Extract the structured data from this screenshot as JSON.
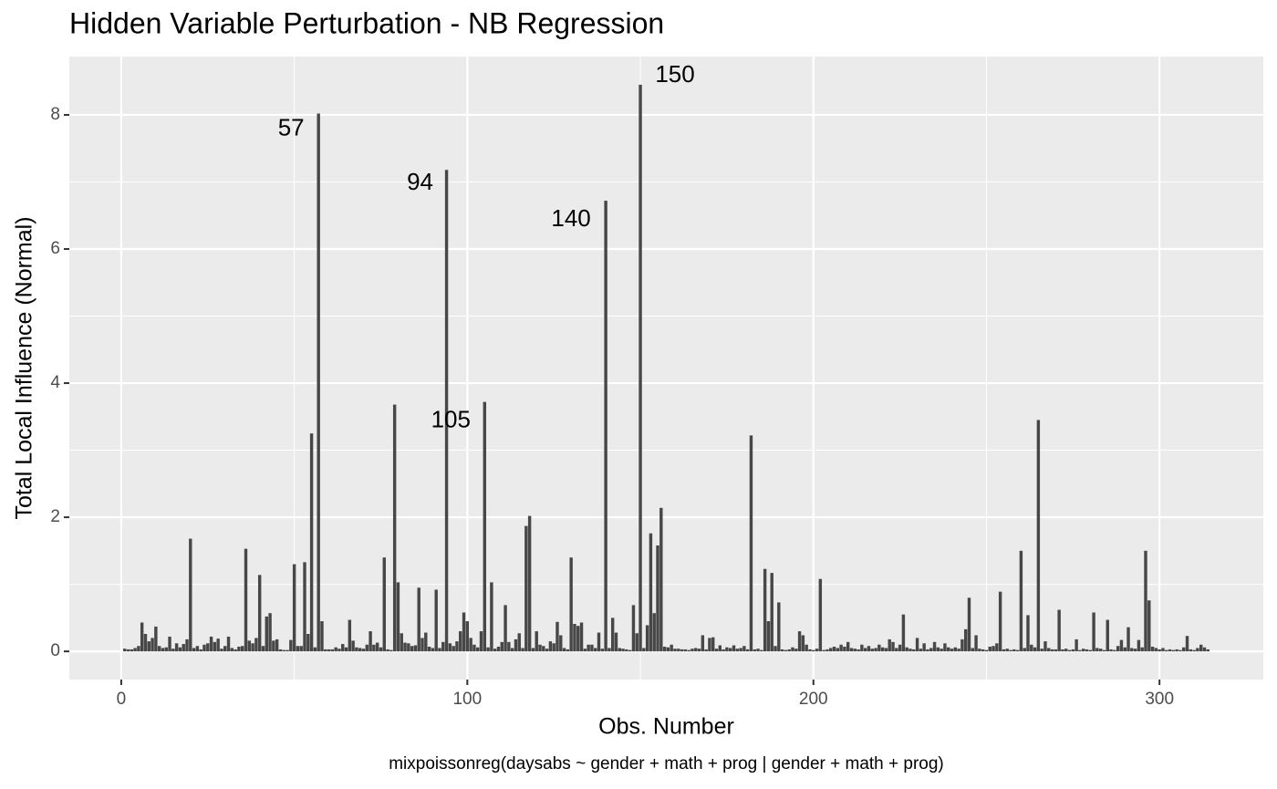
{
  "chart_data": {
    "type": "bar",
    "title": "Hidden Variable Perturbation - NB Regression",
    "x_label": "Obs. Number",
    "y_label": "Total Local Influence (Normal)",
    "caption": "mixpoissonreg(daysabs ~ gender + math + prog | gender + math + prog)",
    "color": "#474747",
    "grid": true,
    "xlim": [
      -15,
      330
    ],
    "ylim": [
      -0.42,
      8.87
    ],
    "xticks": [
      0,
      100,
      200,
      300
    ],
    "yticks": [
      0,
      2,
      4,
      6,
      8
    ],
    "x_minor_grid": [
      50,
      150,
      250
    ],
    "y_minor_grid": [
      1,
      3,
      5,
      7
    ],
    "annotations": [
      {
        "label": "57",
        "x": 57
      },
      {
        "label": "94",
        "x": 94
      },
      {
        "label": "105",
        "x": 105
      },
      {
        "label": "140",
        "x": 140
      },
      {
        "label": "150",
        "x": 150
      }
    ],
    "x": [
      1,
      2,
      3,
      4,
      5,
      6,
      7,
      8,
      9,
      10,
      11,
      12,
      13,
      14,
      15,
      16,
      17,
      18,
      19,
      20,
      21,
      22,
      23,
      24,
      25,
      26,
      27,
      28,
      29,
      30,
      31,
      32,
      33,
      34,
      35,
      36,
      37,
      38,
      39,
      40,
      41,
      42,
      43,
      44,
      45,
      46,
      47,
      48,
      49,
      50,
      51,
      52,
      53,
      54,
      55,
      56,
      57,
      58,
      59,
      60,
      61,
      62,
      63,
      64,
      65,
      66,
      67,
      68,
      69,
      70,
      71,
      72,
      73,
      74,
      75,
      76,
      77,
      78,
      79,
      80,
      81,
      82,
      83,
      84,
      85,
      86,
      87,
      88,
      89,
      90,
      91,
      92,
      93,
      94,
      95,
      96,
      97,
      98,
      99,
      100,
      101,
      102,
      103,
      104,
      105,
      106,
      107,
      108,
      109,
      110,
      111,
      112,
      113,
      114,
      115,
      116,
      117,
      118,
      119,
      120,
      121,
      122,
      123,
      124,
      125,
      126,
      127,
      128,
      129,
      130,
      131,
      132,
      133,
      134,
      135,
      136,
      137,
      138,
      139,
      140,
      141,
      142,
      143,
      144,
      145,
      146,
      147,
      148,
      149,
      150,
      151,
      152,
      153,
      154,
      155,
      156,
      157,
      158,
      159,
      160,
      161,
      162,
      163,
      164,
      165,
      166,
      167,
      168,
      169,
      170,
      171,
      172,
      173,
      174,
      175,
      176,
      177,
      178,
      179,
      180,
      181,
      182,
      183,
      184,
      185,
      186,
      187,
      188,
      189,
      190,
      191,
      192,
      193,
      194,
      195,
      196,
      197,
      198,
      199,
      200,
      201,
      202,
      203,
      204,
      205,
      206,
      207,
      208,
      209,
      210,
      211,
      212,
      213,
      214,
      215,
      216,
      217,
      218,
      219,
      220,
      221,
      222,
      223,
      224,
      225,
      226,
      227,
      228,
      229,
      230,
      231,
      232,
      233,
      234,
      235,
      236,
      237,
      238,
      239,
      240,
      241,
      242,
      243,
      244,
      245,
      246,
      247,
      248,
      249,
      250,
      251,
      252,
      253,
      254,
      255,
      256,
      257,
      258,
      259,
      260,
      261,
      262,
      263,
      264,
      265,
      266,
      267,
      268,
      269,
      270,
      271,
      272,
      273,
      274,
      275,
      276,
      277,
      278,
      279,
      280,
      281,
      282,
      283,
      284,
      285,
      286,
      287,
      288,
      289,
      290,
      291,
      292,
      293,
      294,
      295,
      296,
      297,
      298,
      299,
      300,
      301,
      302,
      303,
      304,
      305,
      306,
      307,
      308,
      309,
      310,
      311,
      312,
      313,
      314
    ],
    "values": [
      0.04,
      0.03,
      0.03,
      0.05,
      0.08,
      0.43,
      0.26,
      0.15,
      0.2,
      0.37,
      0.08,
      0.05,
      0.06,
      0.22,
      0.04,
      0.12,
      0.06,
      0.11,
      0.18,
      1.68,
      0.05,
      0.08,
      0.03,
      0.1,
      0.12,
      0.22,
      0.14,
      0.19,
      0.04,
      0.08,
      0.22,
      0.05,
      0.03,
      0.07,
      0.08,
      1.53,
      0.16,
      0.12,
      0.2,
      1.14,
      0.08,
      0.52,
      0.57,
      0.16,
      0.18,
      0.03,
      0.02,
      0.02,
      0.17,
      1.3,
      0.08,
      0.08,
      1.33,
      0.26,
      3.25,
      0.06,
      8.02,
      0.45,
      0.03,
      0.03,
      0.03,
      0.06,
      0.04,
      0.11,
      0.06,
      0.47,
      0.16,
      0.06,
      0.05,
      0.04,
      0.1,
      0.3,
      0.1,
      0.13,
      0.06,
      1.4,
      0.03,
      0.02,
      3.68,
      1.03,
      0.27,
      0.13,
      0.12,
      0.08,
      0.09,
      0.95,
      0.2,
      0.28,
      0.07,
      0.05,
      0.92,
      0.05,
      0.14,
      7.18,
      0.12,
      0.08,
      0.15,
      0.3,
      0.58,
      0.45,
      0.2,
      0.1,
      0.06,
      0.3,
      3.72,
      0.06,
      1.03,
      0.04,
      0.07,
      0.14,
      0.69,
      0.14,
      0.05,
      0.18,
      0.27,
      0.05,
      1.87,
      2.02,
      0.05,
      0.3,
      0.1,
      0.08,
      0.04,
      0.15,
      0.12,
      0.44,
      0.24,
      0.05,
      0.03,
      1.4,
      0.41,
      0.38,
      0.43,
      0.04,
      0.1,
      0.1,
      0.05,
      0.28,
      0.04,
      6.72,
      0.05,
      0.5,
      0.28,
      0.05,
      0.04,
      0.03,
      0.02,
      0.69,
      0.27,
      8.45,
      0.05,
      0.39,
      1.76,
      0.57,
      1.58,
      2.14,
      0.07,
      0.06,
      0.1,
      0.04,
      0.04,
      0.03,
      0.03,
      0.02,
      0.04,
      0.05,
      0.04,
      0.24,
      0.03,
      0.2,
      0.21,
      0.04,
      0.09,
      0.03,
      0.06,
      0.05,
      0.09,
      0.04,
      0.05,
      0.08,
      0.03,
      3.22,
      0.03,
      0.04,
      0.02,
      1.23,
      0.45,
      1.17,
      0.08,
      0.73,
      0.03,
      0.02,
      0.03,
      0.06,
      0.04,
      0.3,
      0.24,
      0.1,
      0.03,
      0.02,
      0.04,
      1.08,
      0.02,
      0.03,
      0.05,
      0.07,
      0.05,
      0.1,
      0.07,
      0.14,
      0.05,
      0.04,
      0.03,
      0.1,
      0.05,
      0.08,
      0.04,
      0.05,
      0.1,
      0.06,
      0.05,
      0.18,
      0.14,
      0.05,
      0.1,
      0.55,
      0.06,
      0.04,
      0.03,
      0.2,
      0.04,
      0.12,
      0.03,
      0.05,
      0.14,
      0.06,
      0.04,
      0.12,
      0.06,
      0.04,
      0.06,
      0.04,
      0.18,
      0.33,
      0.8,
      0.05,
      0.24,
      0.04,
      0.03,
      0.02,
      0.07,
      0.08,
      0.12,
      0.89,
      0.03,
      0.04,
      0.02,
      0.03,
      0.02,
      1.5,
      0.05,
      0.54,
      0.1,
      0.06,
      3.45,
      0.04,
      0.15,
      0.05,
      0.03,
      0.03,
      0.62,
      0.03,
      0.04,
      0.02,
      0.03,
      0.18,
      0.02,
      0.04,
      0.03,
      0.02,
      0.58,
      0.05,
      0.04,
      0.02,
      0.47,
      0.03,
      0.02,
      0.08,
      0.17,
      0.06,
      0.36,
      0.05,
      0.04,
      0.17,
      0.06,
      1.5,
      0.76,
      0.07,
      0.05,
      0.03,
      0.05,
      0.02,
      0.03,
      0.02,
      0.03,
      0.02,
      0.06,
      0.23,
      0.03,
      0.02,
      0.05,
      0.1,
      0.06,
      0.03
    ]
  }
}
